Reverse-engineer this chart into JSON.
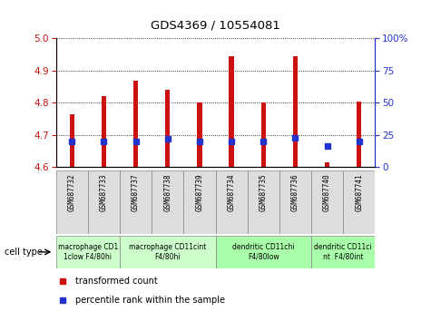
{
  "title": "GDS4369 / 10554081",
  "samples": [
    "GSM687732",
    "GSM687733",
    "GSM687737",
    "GSM687738",
    "GSM687739",
    "GSM687734",
    "GSM687735",
    "GSM687736",
    "GSM687740",
    "GSM687741"
  ],
  "red_values": [
    4.765,
    4.82,
    4.87,
    4.84,
    4.8,
    4.945,
    4.8,
    4.945,
    4.615,
    4.805
  ],
  "blue_values": [
    20,
    20,
    20,
    22,
    20,
    20,
    20,
    23,
    16,
    20
  ],
  "ylim_left": [
    4.6,
    5.0
  ],
  "ylim_right": [
    0,
    100
  ],
  "left_ticks": [
    4.6,
    4.7,
    4.8,
    4.9,
    5.0
  ],
  "right_ticks": [
    0,
    25,
    50,
    75,
    100
  ],
  "right_tick_labels": [
    "0",
    "25",
    "50",
    "75",
    "100%"
  ],
  "red_color": "#cc1111",
  "blue_color": "#2233cc",
  "bar_base": 4.6,
  "bar_width": 0.15,
  "cell_groups": [
    {
      "label": "macrophage CD1\n1clow F4/80hi",
      "start": 0,
      "end": 1,
      "spans": [
        0,
        1
      ],
      "color": "#ccffcc"
    },
    {
      "label": "macrophage CD11cint\nF4/80hi",
      "start": 2,
      "end": 4,
      "spans": [
        2,
        3,
        4
      ],
      "color": "#ccffcc"
    },
    {
      "label": "dendritic CD11chi\nF4/80low",
      "start": 5,
      "end": 7,
      "spans": [
        5,
        6,
        7
      ],
      "color": "#aaffaa"
    },
    {
      "label": "dendritic CD11ci\nnt  F4/80int",
      "start": 8,
      "end": 9,
      "spans": [
        8,
        9
      ],
      "color": "#aaffaa"
    }
  ],
  "group_bounds": [
    {
      "xstart": -0.5,
      "xend": 1.5,
      "label": "macrophage CD1\n1clow F4/80hi",
      "color": "#ccffcc"
    },
    {
      "xstart": 1.5,
      "xend": 4.5,
      "label": "macrophage CD11cint\nF4/80hi",
      "color": "#ccffcc"
    },
    {
      "xstart": 4.5,
      "xend": 7.5,
      "label": "dendritic CD11chi\nF4/80low",
      "color": "#aaffaa"
    },
    {
      "xstart": 7.5,
      "xend": 9.5,
      "label": "dendritic CD11ci\nnt  F4/80int",
      "color": "#aaffaa"
    }
  ],
  "legend_red": "transformed count",
  "legend_blue": "percentile rank within the sample",
  "cell_type_label": "cell type"
}
